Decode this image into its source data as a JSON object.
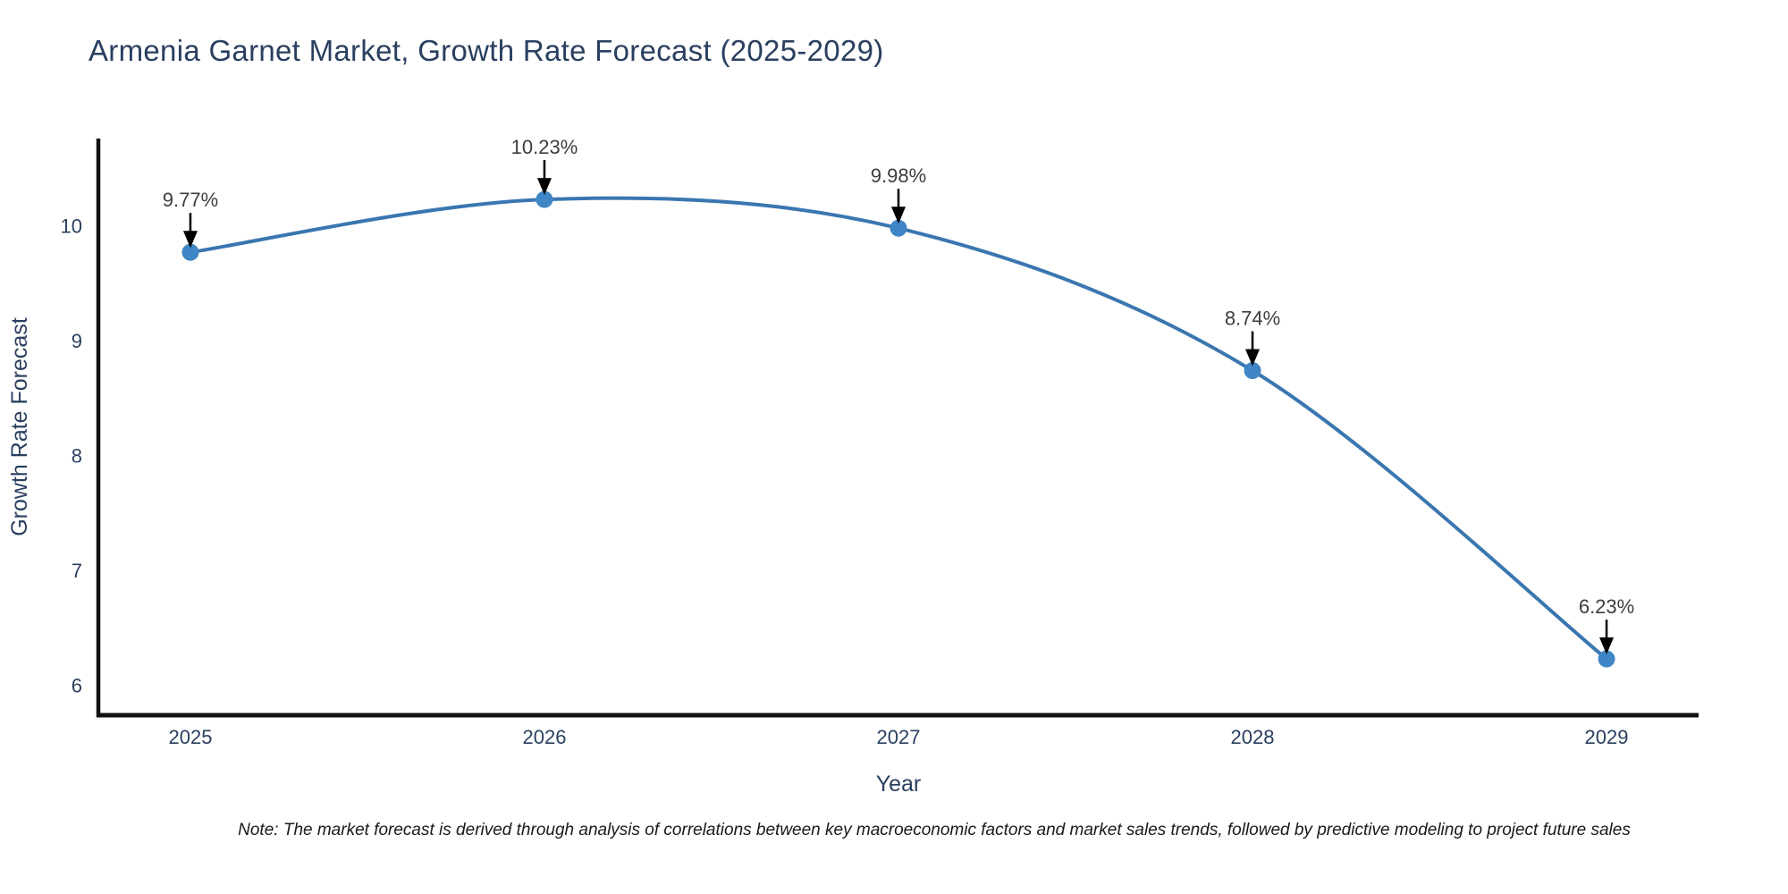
{
  "header": {
    "title": "Armenia Garnet Market, Growth Rate Forecast (2025-2029)"
  },
  "chart_data": {
    "type": "line",
    "title": "Armenia Garnet Market, Growth Rate Forecast (2025-2029)",
    "x": [
      2025,
      2026,
      2027,
      2028,
      2029
    ],
    "values": [
      9.77,
      10.23,
      9.98,
      8.74,
      6.23
    ],
    "point_labels": [
      "9.77%",
      "10.23%",
      "9.98%",
      "8.74%",
      "6.23%"
    ],
    "xlabel": "Year",
    "ylabel": "Growth Rate Forecast",
    "xticks": [
      2025,
      2026,
      2027,
      2028,
      2029
    ],
    "xtick_labels": [
      "2025",
      "2026",
      "2027",
      "2028",
      "2029"
    ],
    "yticks": [
      6,
      7,
      8,
      9,
      10
    ],
    "ytick_labels": [
      "6",
      "7",
      "8",
      "9",
      "10"
    ],
    "xlim": [
      2024.74,
      2029.26
    ],
    "ylim": [
      5.74,
      10.76
    ],
    "grid": false,
    "legend": false,
    "line_shape": "spline",
    "annotation_style": "value label above point with downward black arrow"
  },
  "footnote": {
    "text": "Note: The market forecast is derived through analysis of correlations between key macroeconomic factors and market sales trends, followed by predictive modeling to project future sales"
  },
  "colors": {
    "title_text": "#2a3f5f",
    "axis_text": "#2a3f5f",
    "annotation_text": "#3d3d3d",
    "note_text": "#1a1a1a",
    "axis_line": "#111111",
    "series_line": "#3a76b0",
    "marker_fill": "#3f86c6",
    "arrow": "#000000",
    "background": "#ffffff"
  }
}
